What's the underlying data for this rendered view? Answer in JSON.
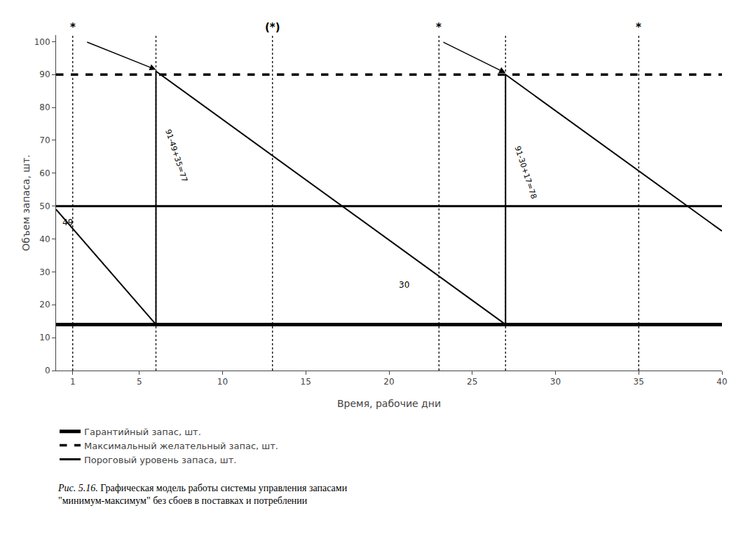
{
  "chart_data": {
    "type": "line",
    "xlabel": "Время, рабочие дни",
    "ylabel": "Объем запаса, шт.",
    "xlim": [
      0,
      40
    ],
    "ylim": [
      0,
      102
    ],
    "xticks": [
      1,
      5,
      10,
      15,
      20,
      25,
      30,
      35,
      40
    ],
    "yticks": [
      0,
      10,
      20,
      30,
      40,
      50,
      60,
      70,
      80,
      90,
      100
    ],
    "grid": false,
    "legend": "bottom",
    "series": [
      {
        "name": "Гарантийный запас, шт.",
        "x": [
          0,
          40
        ],
        "values": [
          14,
          14
        ],
        "color": "#000000",
        "line_style": "solid"
      },
      {
        "name": "Максимальный желательный запас, шт.",
        "x": [
          0,
          40
        ],
        "values": [
          90,
          90
        ],
        "color": "#000000",
        "line_style": "dashed"
      },
      {
        "name": "Пороговый уровень запаса, шт.",
        "x": [
          0,
          40
        ],
        "values": [
          50,
          50
        ],
        "color": "#000000",
        "line_style": "solid"
      },
      {
        "x": [
          0,
          6,
          6,
          27,
          27,
          40
        ],
        "values": [
          49,
          14,
          91,
          14,
          90,
          42.4
        ],
        "color": "#000000",
        "line_style": "solid"
      }
    ],
    "vertical_lines": {
      "values": [
        1,
        6,
        13,
        23,
        27,
        35
      ],
      "color": "#000000",
      "line_style": "dotted"
    },
    "star_labels": [
      {
        "x": 1,
        "text": "*"
      },
      {
        "x": 13,
        "text": "(*)"
      },
      {
        "x": 23,
        "text": "*"
      },
      {
        "x": 35,
        "text": "*"
      }
    ],
    "annotations": [
      {
        "x": 0.3,
        "y": 47,
        "text": "49"
      },
      {
        "x": 20.5,
        "y": 28,
        "text": "30"
      }
    ],
    "rotated_annotations": [
      {
        "x": 6.7,
        "y": 73,
        "text": "91-49+35=77"
      },
      {
        "x": 27.7,
        "y": 68,
        "text": "91-30+17=78"
      }
    ],
    "arrows": [
      {
        "from": [
          1.8,
          100
        ],
        "to": [
          6.0,
          91.5
        ]
      },
      {
        "from": [
          23.2,
          100
        ],
        "to": [
          27.0,
          90.5
        ]
      }
    ],
    "caption": [
      "Рис. 5.16.",
      "Графическая модель работы системы управления запасами",
      "\"минимум-максимум\" без сбоев в поставках и потреблении"
    ]
  }
}
